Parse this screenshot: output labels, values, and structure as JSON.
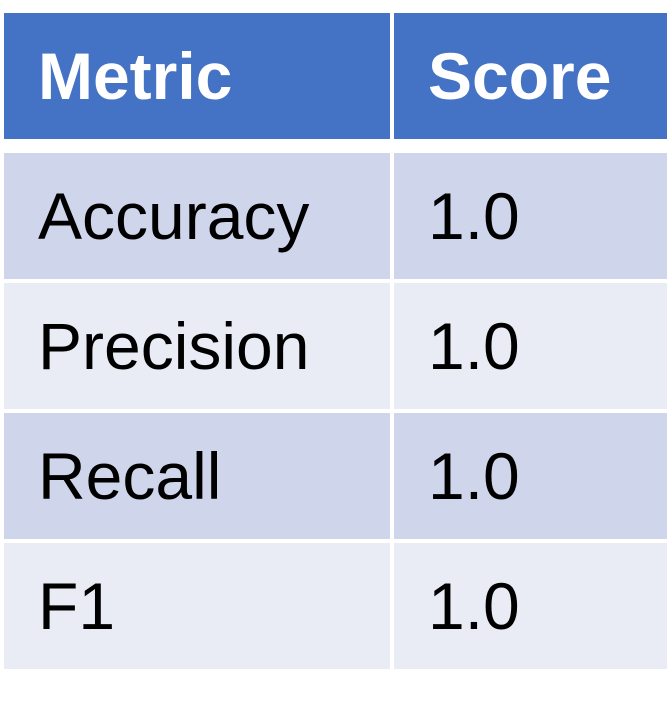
{
  "table": {
    "headers": [
      "Metric",
      "Score"
    ],
    "rows": [
      {
        "metric": "Accuracy",
        "score": "1.0"
      },
      {
        "metric": "Precision",
        "score": "1.0"
      },
      {
        "metric": "Recall",
        "score": "1.0"
      },
      {
        "metric": "F1",
        "score": "1.0"
      }
    ],
    "colors": {
      "header_bg": "#4472c4",
      "header_text": "#ffffff",
      "row_odd_bg": "#cfd5ea",
      "row_even_bg": "#e9ebf5",
      "cell_text": "#000000"
    }
  }
}
